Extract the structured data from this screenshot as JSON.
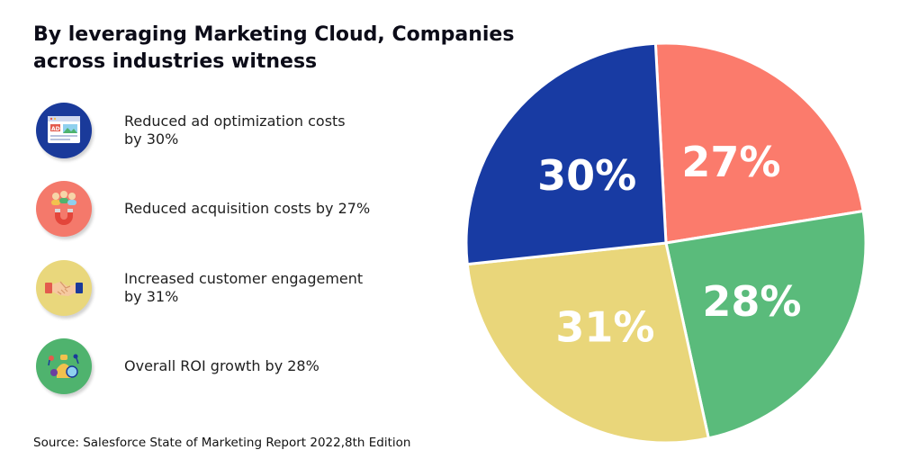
{
  "header": {
    "title_line1": "By leveraging Marketing Cloud, Companies",
    "title_line2": "across industries witness"
  },
  "items": [
    {
      "line1": "Reduced ad optimization costs",
      "line2": "by 30%",
      "icon": "ad-browser-icon",
      "icon_color": "#1a3a9a"
    },
    {
      "line1": "Reduced acquisition costs by 27%",
      "line2": "",
      "icon": "magnet-users-icon",
      "icon_color": "#f4796b"
    },
    {
      "line1": "Increased customer engagement",
      "line2": "by 31%",
      "icon": "handshake-icon",
      "icon_color": "#e9d77c"
    },
    {
      "line1": "Overall ROI growth by 28%",
      "line2": "",
      "icon": "roi-growth-icon",
      "icon_color": "#4fb36e"
    }
  ],
  "source": "Source: Salesforce State of Marketing Report 2022,8th Edition",
  "chart_data": {
    "type": "pie",
    "title": "",
    "categories": [
      "Reduced acquisition costs",
      "Overall ROI growth",
      "Increased customer engagement",
      "Reduced ad optimization costs"
    ],
    "values": [
      27,
      28,
      31,
      30
    ],
    "labels": [
      "27%",
      "28%",
      "31%",
      "30%"
    ],
    "colors": [
      "#fb7b6c",
      "#5abb7b",
      "#e9d67a",
      "#183ba3"
    ]
  }
}
